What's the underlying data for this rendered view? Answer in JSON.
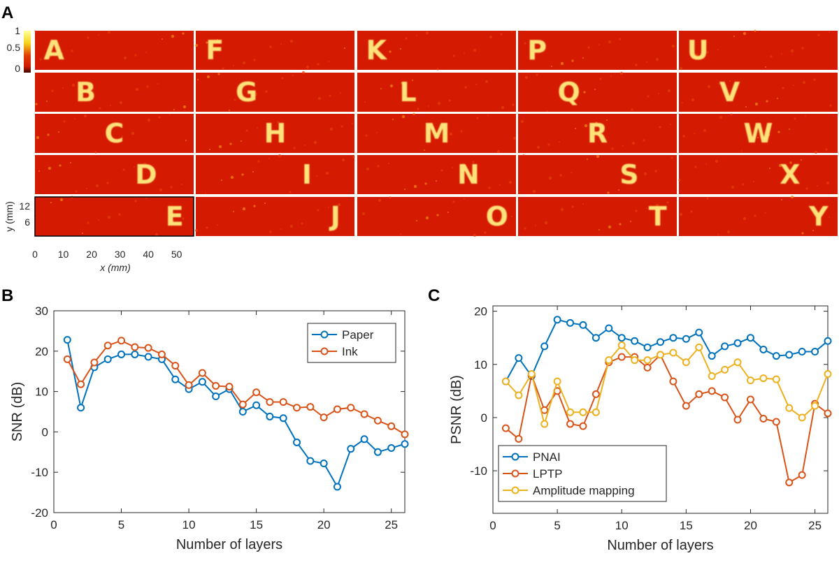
{
  "chart_data": [
    {
      "panel": "A",
      "type": "heatmap",
      "colorbar": {
        "ticks": [
          "1",
          "0.5",
          "0"
        ],
        "range": [
          0,
          1
        ],
        "colors": [
          "#ffff9a",
          "#f5d21a",
          "#e03a06",
          "#d01a00",
          "#3a0800"
        ]
      },
      "background_color": "#d41a00",
      "letter_color": "#ffe37a",
      "xlabel": "x (mm)",
      "ylabel": "y (mm)",
      "xticks": [
        "0",
        "10",
        "20",
        "30",
        "40",
        "50"
      ],
      "yticks": [
        "12",
        "6"
      ],
      "xlim": [
        0,
        56
      ],
      "columns": [
        [
          "A",
          "B",
          "C",
          "D",
          "E"
        ],
        [
          "F",
          "G",
          "H",
          "I",
          "J"
        ],
        [
          "K",
          "L",
          "M",
          "N",
          "O"
        ],
        [
          "P",
          "Q",
          "R",
          "S",
          "T"
        ],
        [
          "U",
          "V",
          "W",
          "X",
          "Y"
        ]
      ]
    },
    {
      "panel": "B",
      "type": "line",
      "xlabel": "Number of layers",
      "ylabel": "SNR (dB)",
      "xlim": [
        0,
        26
      ],
      "ylim": [
        -20,
        30
      ],
      "xticks": [
        0,
        5,
        10,
        15,
        20,
        25
      ],
      "yticks": [
        -20,
        -10,
        0,
        10,
        20,
        30
      ],
      "legend_position": "top-right",
      "x": [
        1,
        2,
        3,
        4,
        5,
        6,
        7,
        8,
        9,
        10,
        11,
        12,
        13,
        14,
        15,
        16,
        17,
        18,
        19,
        20,
        21,
        22,
        23,
        24,
        25,
        26
      ],
      "series": [
        {
          "name": "Paper",
          "color": "#0072bd",
          "values": [
            22.8,
            6.0,
            16.0,
            18.0,
            19.2,
            19.2,
            18.6,
            18.0,
            13.0,
            10.6,
            12.4,
            8.8,
            10.6,
            5.0,
            6.6,
            3.8,
            3.4,
            -2.6,
            -7.2,
            -7.8,
            -13.6,
            -4.2,
            -1.8,
            -5.0,
            -4.0,
            -3.0
          ]
        },
        {
          "name": "Ink",
          "color": "#d95319",
          "values": [
            18.0,
            11.8,
            17.2,
            21.4,
            22.6,
            21.0,
            20.8,
            19.2,
            16.4,
            11.6,
            14.6,
            11.4,
            11.2,
            6.8,
            9.8,
            7.4,
            7.4,
            6.0,
            6.2,
            3.6,
            5.6,
            6.0,
            4.4,
            2.8,
            1.4,
            -0.6
          ]
        }
      ]
    },
    {
      "panel": "C",
      "type": "line",
      "xlabel": "Number of layers",
      "ylabel": "PSNR (dB)",
      "xlim": [
        0,
        26
      ],
      "ylim": [
        -18,
        21
      ],
      "xticks": [
        0,
        5,
        10,
        15,
        20,
        25
      ],
      "yticks": [
        -10,
        0,
        10,
        20
      ],
      "legend_position": "bottom-left",
      "x": [
        1,
        2,
        3,
        4,
        5,
        6,
        7,
        8,
        9,
        10,
        11,
        12,
        13,
        14,
        15,
        16,
        17,
        18,
        19,
        20,
        21,
        22,
        23,
        24,
        25,
        26
      ],
      "series": [
        {
          "name": "PNAI",
          "color": "#0072bd",
          "values": [
            6.8,
            11.2,
            7.8,
            13.4,
            18.4,
            17.8,
            17.4,
            15.0,
            16.8,
            15.0,
            14.4,
            13.2,
            14.2,
            15.0,
            14.8,
            16.0,
            11.6,
            13.4,
            14.0,
            15.0,
            12.8,
            11.6,
            11.8,
            12.4,
            12.4,
            14.4
          ]
        },
        {
          "name": "LPTP",
          "color": "#d95319",
          "values": [
            -2.0,
            -4.0,
            8.0,
            1.4,
            5.0,
            -1.2,
            -1.6,
            4.4,
            10.4,
            11.4,
            11.4,
            9.4,
            11.8,
            6.8,
            2.2,
            4.4,
            5.0,
            3.8,
            -0.4,
            3.4,
            -0.2,
            -0.8,
            -12.2,
            -10.8,
            2.6,
            0.8
          ]
        },
        {
          "name": "Amplitude mapping",
          "color": "#edb120",
          "values": [
            6.8,
            4.2,
            8.2,
            -1.2,
            6.8,
            1.0,
            1.0,
            1.0,
            10.8,
            13.6,
            10.8,
            10.8,
            11.8,
            12.2,
            10.4,
            13.2,
            7.8,
            9.0,
            10.4,
            7.0,
            7.4,
            7.2,
            1.8,
            0.0,
            2.2,
            8.2
          ]
        }
      ]
    }
  ]
}
